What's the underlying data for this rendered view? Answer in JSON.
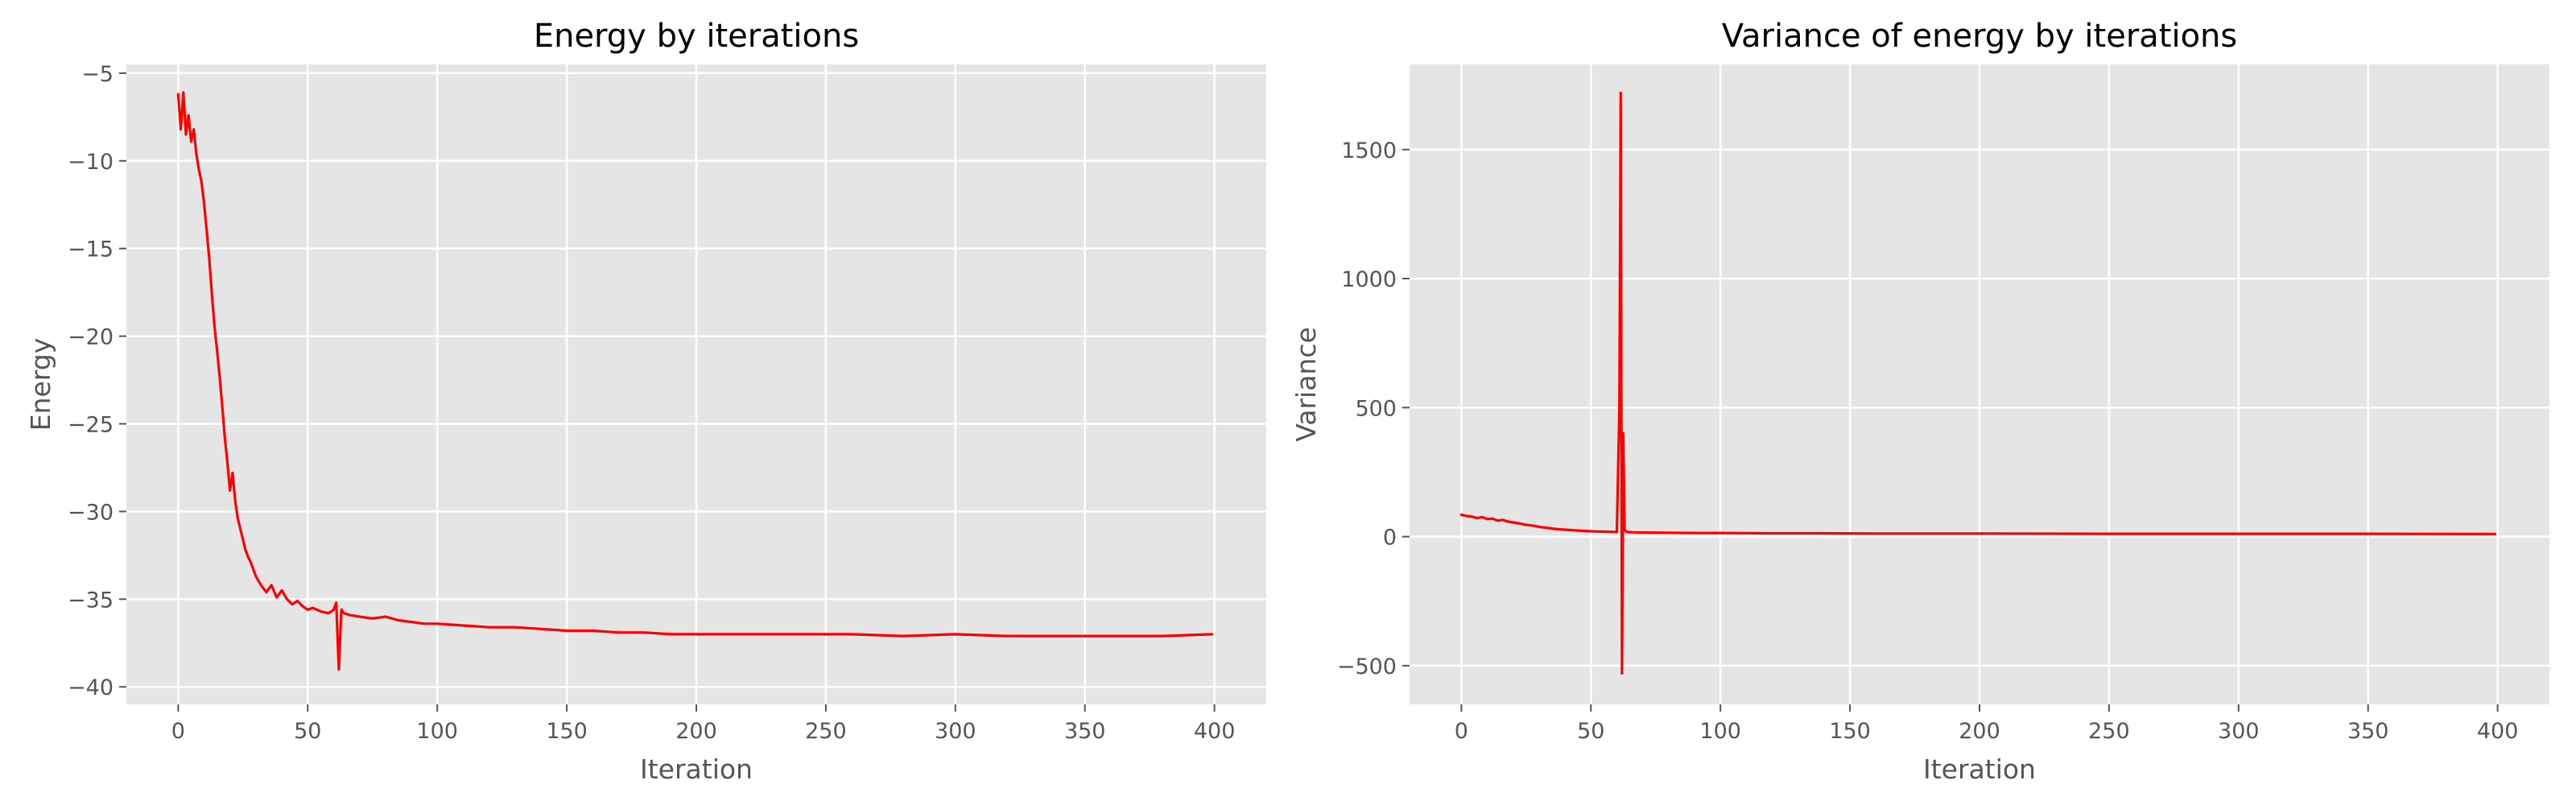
{
  "chart_data": [
    {
      "type": "line",
      "title": "Energy by iterations",
      "xlabel": "Iteration",
      "ylabel": "Energy",
      "xlim": [
        -20,
        420
      ],
      "ylim": [
        -41,
        -4.5
      ],
      "xticks": [
        0,
        50,
        100,
        150,
        200,
        250,
        300,
        350,
        400
      ],
      "yticks": [
        -40,
        -35,
        -30,
        -25,
        -20,
        -15,
        -10,
        -5
      ],
      "tick_labels_x": [
        "0",
        "50",
        "100",
        "150",
        "200",
        "250",
        "300",
        "350",
        "400"
      ],
      "tick_labels_y": [
        "−40",
        "−35",
        "−30",
        "−25",
        "−20",
        "−15",
        "−10",
        "−5"
      ],
      "grid": true,
      "color": "#ff0000",
      "series": [
        {
          "x": [
            0,
            1,
            2,
            3,
            4,
            5,
            6,
            7,
            8,
            9,
            10,
            11,
            12,
            13,
            14,
            15,
            16,
            17,
            18,
            19,
            20,
            21,
            22,
            23,
            24,
            25,
            26,
            27,
            28,
            29,
            30,
            32,
            34,
            36,
            38,
            40,
            42,
            44,
            46,
            48,
            50,
            52,
            55,
            58,
            60,
            61,
            62,
            63,
            64,
            66,
            70,
            75,
            80,
            85,
            90,
            95,
            100,
            110,
            120,
            130,
            140,
            150,
            160,
            170,
            180,
            190,
            200,
            220,
            240,
            260,
            280,
            300,
            320,
            340,
            360,
            380,
            399
          ],
          "y": [
            -6.2,
            -8.2,
            -6.1,
            -8.5,
            -7.4,
            -8.9,
            -8.2,
            -9.6,
            -10.5,
            -11.2,
            -12.4,
            -14.0,
            -15.6,
            -17.6,
            -19.4,
            -20.8,
            -22.3,
            -24.0,
            -25.8,
            -27.2,
            -28.8,
            -27.8,
            -29.4,
            -30.4,
            -31.0,
            -31.6,
            -32.2,
            -32.6,
            -32.9,
            -33.3,
            -33.7,
            -34.2,
            -34.6,
            -34.2,
            -34.9,
            -34.5,
            -35.0,
            -35.3,
            -35.1,
            -35.4,
            -35.6,
            -35.5,
            -35.7,
            -35.8,
            -35.6,
            -35.2,
            -39.0,
            -35.6,
            -35.8,
            -35.9,
            -36.0,
            -36.1,
            -36.0,
            -36.2,
            -36.3,
            -36.4,
            -36.4,
            -36.5,
            -36.6,
            -36.6,
            -36.7,
            -36.8,
            -36.8,
            -36.9,
            -36.9,
            -37.0,
            -37.0,
            -37.0,
            -37.0,
            -37.0,
            -37.1,
            -37.0,
            -37.1,
            -37.1,
            -37.1,
            -37.1,
            -37.0
          ]
        }
      ]
    },
    {
      "type": "line",
      "title": "Variance of energy by iterations",
      "xlabel": "Iteration",
      "ylabel": "Variance",
      "xlim": [
        -20,
        420
      ],
      "ylim": [
        -650,
        1830
      ],
      "xticks": [
        0,
        50,
        100,
        150,
        200,
        250,
        300,
        350,
        400
      ],
      "yticks": [
        -500,
        0,
        500,
        1000,
        1500
      ],
      "tick_labels_x": [
        "0",
        "50",
        "100",
        "150",
        "200",
        "250",
        "300",
        "350",
        "400"
      ],
      "tick_labels_y": [
        "−500",
        "0",
        "500",
        "1000",
        "1500"
      ],
      "grid": true,
      "color": "#ff0000",
      "series": [
        {
          "x": [
            0,
            2,
            4,
            6,
            8,
            10,
            12,
            14,
            16,
            18,
            20,
            22,
            25,
            28,
            30,
            33,
            36,
            40,
            44,
            48,
            52,
            56,
            60,
            61,
            61.5,
            62,
            62.5,
            63,
            64,
            66,
            70,
            80,
            90,
            100,
            120,
            140,
            160,
            180,
            200,
            250,
            300,
            350,
            399
          ],
          "y": [
            85,
            80,
            78,
            72,
            76,
            68,
            70,
            62,
            65,
            58,
            55,
            52,
            46,
            42,
            38,
            34,
            30,
            27,
            24,
            22,
            20,
            19,
            18,
            500,
            1720,
            -530,
            400,
            25,
            18,
            17,
            16,
            15,
            14,
            14,
            13,
            13,
            12,
            12,
            12,
            11,
            11,
            11,
            10
          ]
        }
      ]
    }
  ]
}
